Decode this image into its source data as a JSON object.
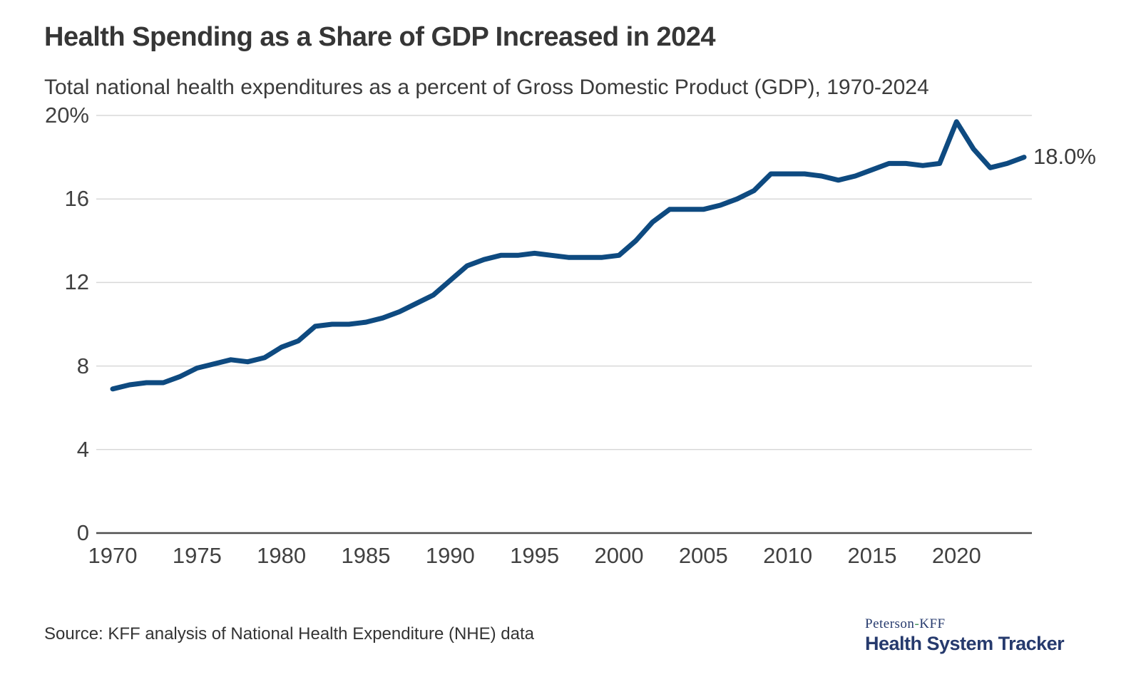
{
  "page": {
    "title": "Health Spending as a Share of GDP Increased in 2024",
    "subtitle": "Total national health expenditures as a percent of Gross Domestic Product (GDP), 1970-2024",
    "source": "Source: KFF analysis of National Health Expenditure (NHE) data"
  },
  "logo": {
    "top_prefix": "Peterson",
    "top_hyphen": "-",
    "top_suffix": "KFF",
    "bottom_line": "Health System Tracker",
    "navy_color": "#263a6d",
    "green_color": "#40925a"
  },
  "chart_data": {
    "type": "line",
    "title": "Health Spending as a Share of GDP Increased in 2024",
    "subtitle": "Total national health expenditures as a percent of Gross Domestic Product (GDP), 1970-2024",
    "series_name": "Total national health expenditures as a percent of GDP",
    "x": [
      1970,
      1971,
      1972,
      1973,
      1974,
      1975,
      1976,
      1977,
      1978,
      1979,
      1980,
      1981,
      1982,
      1983,
      1984,
      1985,
      1986,
      1987,
      1988,
      1989,
      1990,
      1991,
      1992,
      1993,
      1994,
      1995,
      1996,
      1997,
      1998,
      1999,
      2000,
      2001,
      2002,
      2003,
      2004,
      2005,
      2006,
      2007,
      2008,
      2009,
      2010,
      2011,
      2012,
      2013,
      2014,
      2015,
      2016,
      2017,
      2018,
      2019,
      2020,
      2021,
      2022,
      2023,
      2024
    ],
    "values": [
      6.9,
      7.1,
      7.2,
      7.2,
      7.5,
      7.9,
      8.1,
      8.3,
      8.2,
      8.4,
      8.9,
      9.2,
      9.9,
      10.0,
      10.0,
      10.1,
      10.3,
      10.6,
      11.0,
      11.4,
      12.1,
      12.8,
      13.1,
      13.3,
      13.3,
      13.4,
      13.3,
      13.2,
      13.2,
      13.2,
      13.3,
      14.0,
      14.9,
      15.5,
      15.5,
      15.5,
      15.7,
      16.0,
      16.4,
      17.2,
      17.2,
      17.2,
      17.1,
      16.9,
      17.1,
      17.4,
      17.7,
      17.7,
      17.6,
      17.7,
      19.7,
      18.4,
      17.5,
      17.7,
      18.0
    ],
    "end_label": "18.0%",
    "xlabel": "",
    "ylabel": "",
    "ylim": [
      0,
      20
    ],
    "xlim": [
      1970,
      2024
    ],
    "grid": "horizontal",
    "legend": "none",
    "line_color": "#0e4a80",
    "gridline_color": "#d8d8d8",
    "axis_color": "#4d4d4d",
    "yticks": [
      {
        "value": 0,
        "label": "0"
      },
      {
        "value": 4,
        "label": "4"
      },
      {
        "value": 8,
        "label": "8"
      },
      {
        "value": 12,
        "label": "12"
      },
      {
        "value": 16,
        "label": "16"
      },
      {
        "value": 20,
        "label": "20%"
      }
    ],
    "xticks": [
      {
        "value": 1970,
        "label": "1970"
      },
      {
        "value": 1975,
        "label": "1975"
      },
      {
        "value": 1980,
        "label": "1980"
      },
      {
        "value": 1985,
        "label": "1985"
      },
      {
        "value": 1990,
        "label": "1990"
      },
      {
        "value": 1995,
        "label": "1995"
      },
      {
        "value": 2000,
        "label": "2000"
      },
      {
        "value": 2005,
        "label": "2005"
      },
      {
        "value": 2010,
        "label": "2010"
      },
      {
        "value": 2015,
        "label": "2015"
      },
      {
        "value": 2020,
        "label": "2020"
      }
    ]
  }
}
